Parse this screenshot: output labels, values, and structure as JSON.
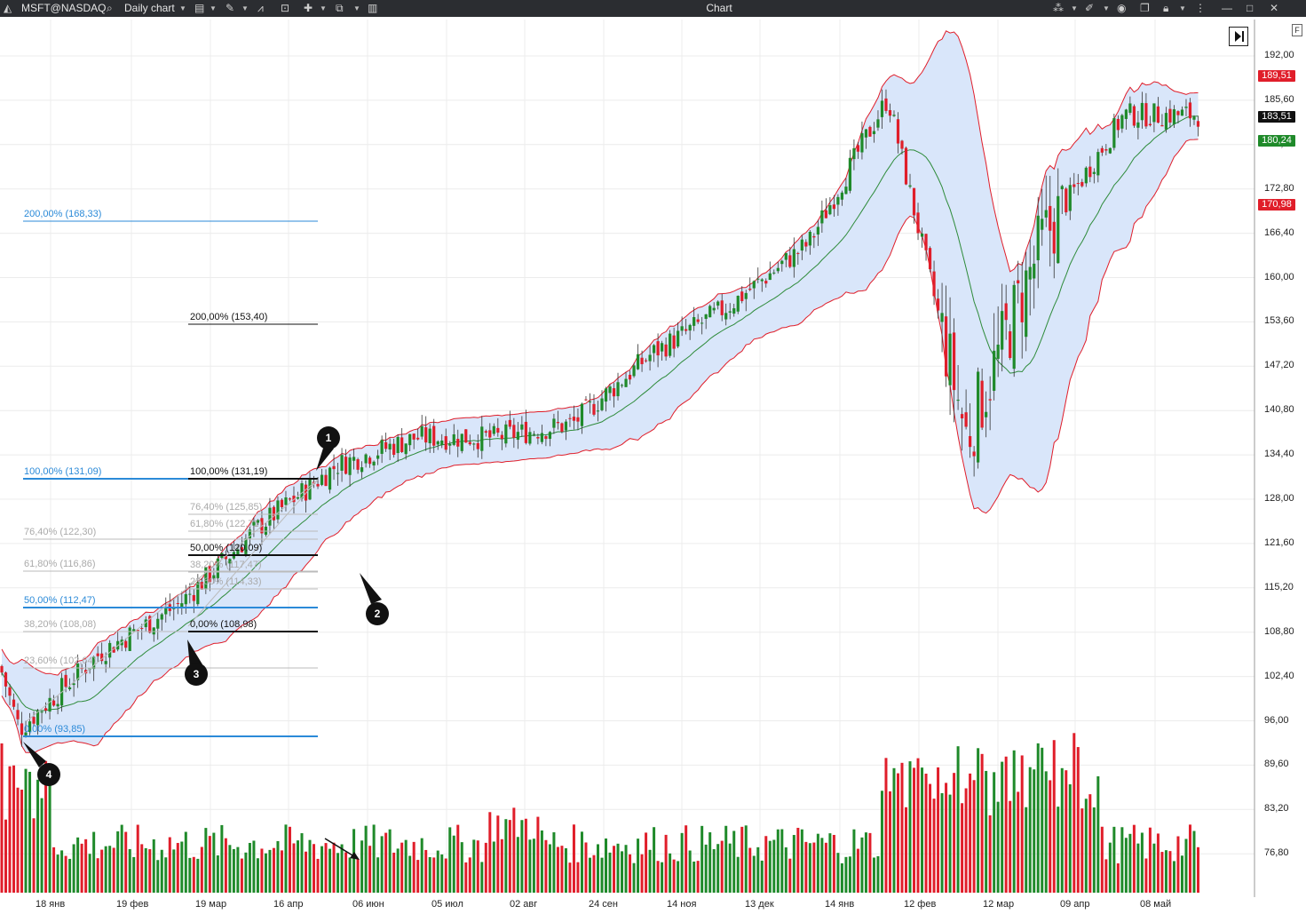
{
  "toolbar": {
    "symbol": "MSFT@NASDAQ",
    "timeframe": "Daily chart",
    "title": "Chart",
    "icons": [
      "app-logo-icon",
      "search-icon",
      "chart-type-icon",
      "draw-icon",
      "indicators-icon",
      "templates-icon",
      "crosshair-icon",
      "layout-icon",
      "sidebar-icon",
      "link-icon",
      "pin-icon",
      "screenshot-icon",
      "clone-icon",
      "lock-icon",
      "more-icon",
      "minimize-icon",
      "maximize-icon",
      "close-icon"
    ]
  },
  "price_axis": {
    "ticks": [
      "192,00",
      "185,60",
      "179,20",
      "172,80",
      "166,40",
      "160,00",
      "153,60",
      "147,20",
      "140,80",
      "134,40",
      "128,00",
      "121,60",
      "115,20",
      "108,80",
      "102,40",
      "96,00",
      "89,60",
      "83,20",
      "76,80"
    ],
    "badges": [
      {
        "text": "189,51",
        "color": "#e01e2a"
      },
      {
        "text": "183,51",
        "color": "#111111"
      },
      {
        "text": "180,24",
        "color": "#1f8a2a"
      },
      {
        "text": "170,98",
        "color": "#e01e2a"
      }
    ]
  },
  "time_axis": {
    "labels": [
      "18 янв",
      "19 фев",
      "19 мар",
      "16 апр",
      "06 июн",
      "05 июл",
      "02 авг",
      "24 сен",
      "14 ноя",
      "13 дек",
      "14 янв",
      "12 фев",
      "12 мар",
      "09 апр",
      "08 май"
    ]
  },
  "fib_levels": {
    "blue": [
      "200,00% (168,33)",
      "100,00% (131,09)",
      "76,40% (122,30)",
      "61,80% (116,86)",
      "50,00% (112,47)",
      "38,20% (108,08)",
      "23,60% (102,64)",
      "0,00% (93,85)"
    ],
    "black": [
      "200,00% (153,40)",
      "100,00% (131,19)",
      "76,40% (125,85)",
      "61,80% (122,71)",
      "50,00% (120,09)",
      "38,20% (117,47)",
      "23,60% (114,33)",
      "0,00% (108,98)"
    ]
  },
  "markers": [
    "1",
    "2",
    "3",
    "4"
  ],
  "colors": {
    "up": "#1f8a2a",
    "down": "#e01e2a",
    "band_fill": "#d9e6fa",
    "band_line": "#e01e2a",
    "ma_line": "#2e8b3a",
    "fib_blue": "#2b8ad8",
    "grid": "#ececec"
  },
  "chart_data": {
    "type": "candlestick",
    "symbol": "MSFT@NASDAQ",
    "indicators": [
      "Bollinger Bands",
      "Volume"
    ],
    "approx_close_path": [
      {
        "date": "18 янв",
        "close": 95
      },
      {
        "date": "19 фев",
        "close": 106
      },
      {
        "date": "19 мар",
        "close": 113
      },
      {
        "date": "16 апр",
        "close": 124
      },
      {
        "date": "06 июн",
        "close": 133
      },
      {
        "date": "05 июл",
        "close": 137
      },
      {
        "date": "02 авг",
        "close": 137
      },
      {
        "date": "24 сен",
        "close": 139
      },
      {
        "date": "14 ноя",
        "close": 149
      },
      {
        "date": "13 дек",
        "close": 156
      },
      {
        "date": "14 янв",
        "close": 165
      },
      {
        "date": "12 фев",
        "close": 186
      },
      {
        "date": "12 мар",
        "close": 137
      },
      {
        "date": "09 апр",
        "close": 166
      },
      {
        "date": "08 май",
        "close": 183.51
      }
    ],
    "last_price": 183.51,
    "upper_band": 189.51,
    "middle_band": 180.24,
    "lower_band": 170.98,
    "ylim": [
      89.6,
      197
    ]
  }
}
